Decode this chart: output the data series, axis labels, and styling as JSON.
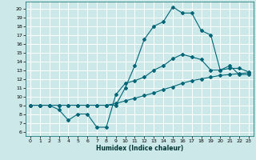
{
  "xlabel": "Humidex (Indice chaleur)",
  "bg_color": "#cce8e8",
  "grid_color": "#ffffff",
  "line_color": "#006677",
  "xlim": [
    -0.5,
    23.5
  ],
  "ylim": [
    5.5,
    20.8
  ],
  "xticks": [
    0,
    1,
    2,
    3,
    4,
    5,
    6,
    7,
    8,
    9,
    10,
    11,
    12,
    13,
    14,
    15,
    16,
    17,
    18,
    19,
    20,
    21,
    22,
    23
  ],
  "yticks": [
    6,
    7,
    8,
    9,
    10,
    11,
    12,
    13,
    14,
    15,
    16,
    17,
    18,
    19,
    20
  ],
  "line1_x": [
    0,
    1,
    2,
    3,
    4,
    5,
    6,
    7,
    8,
    9,
    10,
    11,
    12,
    13,
    14,
    15,
    16,
    17,
    18,
    19,
    20,
    21,
    22,
    23
  ],
  "line1_y": [
    9.0,
    9.0,
    9.0,
    8.5,
    7.3,
    8.0,
    8.0,
    6.5,
    6.5,
    10.2,
    11.5,
    11.8,
    12.2,
    13.0,
    13.5,
    14.3,
    14.8,
    14.5,
    14.2,
    13.0,
    13.0,
    13.2,
    13.2,
    12.8
  ],
  "line2_x": [
    0,
    1,
    2,
    3,
    4,
    5,
    6,
    7,
    8,
    9,
    10,
    11,
    12,
    13,
    14,
    15,
    16,
    17,
    18,
    19,
    20,
    21,
    22,
    23
  ],
  "line2_y": [
    9.0,
    9.0,
    9.0,
    9.0,
    9.0,
    9.0,
    9.0,
    9.0,
    9.0,
    9.2,
    9.5,
    9.8,
    10.1,
    10.4,
    10.8,
    11.1,
    11.5,
    11.8,
    12.0,
    12.2,
    12.4,
    12.5,
    12.6,
    12.7
  ],
  "line3_x": [
    0,
    1,
    2,
    3,
    4,
    5,
    6,
    7,
    8,
    9,
    10,
    11,
    12,
    13,
    14,
    15,
    16,
    17,
    18,
    19,
    20,
    21,
    22,
    23
  ],
  "line3_y": [
    9.0,
    9.0,
    9.0,
    9.0,
    9.0,
    9.0,
    9.0,
    9.0,
    9.0,
    9.0,
    11.0,
    13.5,
    16.5,
    18.0,
    18.5,
    20.2,
    19.5,
    19.5,
    17.5,
    17.0,
    13.0,
    13.5,
    12.5,
    12.5
  ]
}
